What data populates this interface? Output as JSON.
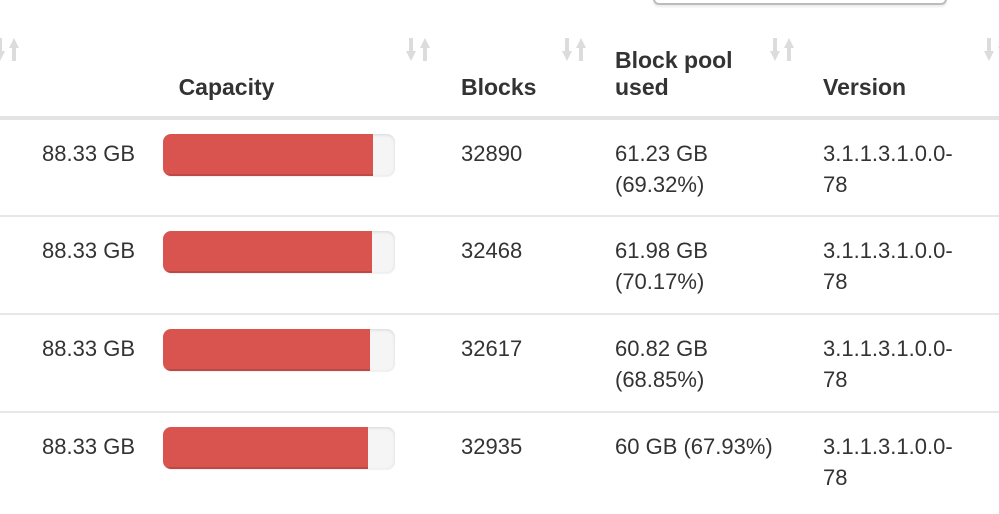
{
  "search_box": {
    "value": ""
  },
  "table": {
    "columns": [
      {
        "id": "col-0",
        "label": "",
        "sortable": true
      },
      {
        "id": "capacity",
        "label": "Capacity",
        "sortable": true
      },
      {
        "id": "blocks",
        "label": "Blocks",
        "sortable": true
      },
      {
        "id": "block-pool-used",
        "label": "Block pool used",
        "sortable": true
      },
      {
        "id": "version",
        "label": "Version",
        "sortable": true
      }
    ],
    "rows": [
      {
        "capacity": "88.33 GB",
        "capacity_used_percent": 90.5,
        "blocks": "32890",
        "block_pool_used": "61.23 GB (69.32%)",
        "version": "3.1.1.3.1.0.0-78"
      },
      {
        "capacity": "88.33 GB",
        "capacity_used_percent": 90.0,
        "blocks": "32468",
        "block_pool_used": "61.98 GB (70.17%)",
        "version": "3.1.1.3.1.0.0-78"
      },
      {
        "capacity": "88.33 GB",
        "capacity_used_percent": 89.2,
        "blocks": "32617",
        "block_pool_used": "60.82 GB (68.85%)",
        "version": "3.1.1.3.1.0.0-78"
      },
      {
        "capacity": "88.33 GB",
        "capacity_used_percent": 88.4,
        "blocks": "32935",
        "block_pool_used": "60 GB (67.93%)",
        "version": "3.1.1.3.1.0.0-78"
      }
    ]
  },
  "colors": {
    "bar_fill": "#d9534f",
    "bar_track": "#f5f5f5",
    "sort_icon": "#dcdcdc",
    "header_border": "#e3e3e3",
    "row_border": "#e7e7e7",
    "text": "#333333"
  }
}
